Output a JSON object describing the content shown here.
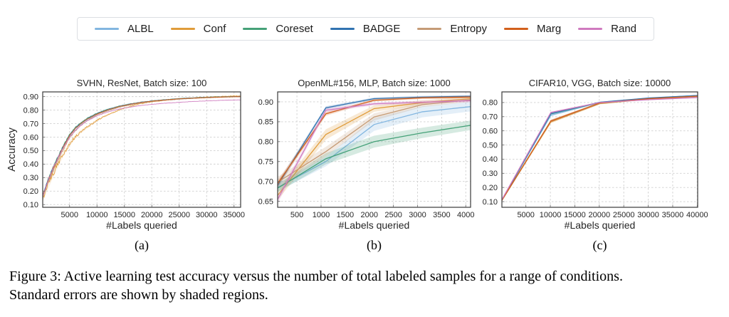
{
  "figure": {
    "caption_line1": "Figure 3: Active learning test accuracy versus the number of total labeled samples for a range of conditions.",
    "caption_line2": "Standard errors are shown by shaded regions."
  },
  "legend": {
    "entries": [
      {
        "label": "ALBL",
        "color": "#82B6E0"
      },
      {
        "label": "Conf",
        "color": "#E09C3A"
      },
      {
        "label": "Coreset",
        "color": "#45A178"
      },
      {
        "label": "BADGE",
        "color": "#3173B1"
      },
      {
        "label": "Entropy",
        "color": "#C59B76"
      },
      {
        "label": "Marg",
        "color": "#D2601C"
      },
      {
        "label": "Rand",
        "color": "#CF7ABF"
      }
    ]
  },
  "chart_data": [
    {
      "type": "line",
      "title": "SVHN, ResNet, Batch size: 100",
      "xlabel": "#Labels queried",
      "ylabel": "Accuracy",
      "sublabel": "(a)",
      "grid": true,
      "noisy": true,
      "xlim": [
        100,
        36200
      ],
      "ylim": [
        0.08,
        0.935
      ],
      "x_ticks": [
        5000,
        10000,
        15000,
        20000,
        25000,
        30000,
        35000
      ],
      "y_ticks": [
        0.1,
        0.2,
        0.3,
        0.4,
        0.5,
        0.6,
        0.7,
        0.8,
        0.9
      ],
      "x": [
        100,
        1000,
        2000,
        3000,
        4000,
        5000,
        6000,
        7000,
        8000,
        10000,
        12000,
        14000,
        16000,
        18000,
        20000,
        22000,
        25000,
        28000,
        31000,
        34000,
        36200
      ],
      "series": [
        {
          "name": "ALBL",
          "noise": 0.011,
          "values": [
            0.155,
            0.265,
            0.365,
            0.455,
            0.535,
            0.61,
            0.66,
            0.695,
            0.725,
            0.77,
            0.8,
            0.824,
            0.841,
            0.855,
            0.865,
            0.872,
            0.882,
            0.889,
            0.894,
            0.897,
            0.899
          ]
        },
        {
          "name": "Conf",
          "noise": 0.024,
          "values": [
            0.148,
            0.24,
            0.33,
            0.41,
            0.485,
            0.55,
            0.6,
            0.638,
            0.668,
            0.725,
            0.768,
            0.8,
            0.827,
            0.848,
            0.862,
            0.872,
            0.884,
            0.892,
            0.898,
            0.903,
            0.906
          ]
        },
        {
          "name": "Coreset",
          "noise": 0.011,
          "values": [
            0.165,
            0.275,
            0.375,
            0.465,
            0.545,
            0.62,
            0.67,
            0.705,
            0.735,
            0.778,
            0.807,
            0.83,
            0.846,
            0.859,
            0.868,
            0.876,
            0.886,
            0.892,
            0.897,
            0.9,
            0.902
          ]
        },
        {
          "name": "BADGE",
          "noise": 0.011,
          "values": [
            0.16,
            0.27,
            0.37,
            0.46,
            0.54,
            0.615,
            0.665,
            0.7,
            0.73,
            0.775,
            0.805,
            0.828,
            0.845,
            0.858,
            0.868,
            0.875,
            0.885,
            0.891,
            0.896,
            0.899,
            0.901
          ]
        },
        {
          "name": "Entropy",
          "noise": 0.013,
          "values": [
            0.15,
            0.255,
            0.35,
            0.44,
            0.52,
            0.595,
            0.645,
            0.685,
            0.715,
            0.765,
            0.795,
            0.82,
            0.838,
            0.852,
            0.863,
            0.871,
            0.881,
            0.888,
            0.893,
            0.897,
            0.899
          ]
        },
        {
          "name": "Marg",
          "noise": 0.011,
          "values": [
            0.158,
            0.268,
            0.368,
            0.458,
            0.538,
            0.612,
            0.662,
            0.698,
            0.728,
            0.772,
            0.802,
            0.826,
            0.843,
            0.857,
            0.867,
            0.874,
            0.884,
            0.89,
            0.895,
            0.898,
            0.9
          ]
        },
        {
          "name": "Rand",
          "noise": 0.008,
          "values": [
            0.16,
            0.27,
            0.37,
            0.455,
            0.53,
            0.6,
            0.648,
            0.685,
            0.715,
            0.758,
            0.787,
            0.808,
            0.822,
            0.834,
            0.843,
            0.85,
            0.858,
            0.865,
            0.87,
            0.874,
            0.876
          ]
        }
      ]
    },
    {
      "type": "line",
      "title": "OpenML#156, MLP, Batch size: 1000",
      "xlabel": "#Labels queried",
      "ylabel": "",
      "sublabel": "(b)",
      "grid": true,
      "noisy": false,
      "xlim": [
        100,
        4100
      ],
      "ylim": [
        0.635,
        0.925
      ],
      "x_ticks": [
        500,
        1000,
        1500,
        2000,
        2500,
        3000,
        3500,
        4000
      ],
      "y_ticks": [
        0.65,
        0.7,
        0.75,
        0.8,
        0.85,
        0.9
      ],
      "x": [
        100,
        1100,
        2100,
        3100,
        4100
      ],
      "series": [
        {
          "name": "ALBL",
          "values": [
            0.685,
            0.75,
            0.843,
            0.875,
            0.888
          ],
          "err": [
            0.01,
            0.012,
            0.016,
            0.014,
            0.012
          ]
        },
        {
          "name": "Conf",
          "values": [
            0.665,
            0.818,
            0.883,
            0.898,
            0.908
          ],
          "err": [
            0.012,
            0.013,
            0.008,
            0.006,
            0.005
          ]
        },
        {
          "name": "Coreset",
          "values": [
            0.683,
            0.757,
            0.8,
            0.822,
            0.841
          ],
          "err": [
            0.01,
            0.014,
            0.015,
            0.013,
            0.012
          ]
        },
        {
          "name": "BADGE",
          "values": [
            0.69,
            0.885,
            0.908,
            0.912,
            0.914
          ],
          "err": [
            0.008,
            0.004,
            0.003,
            0.003,
            0.003
          ]
        },
        {
          "name": "Entropy",
          "values": [
            0.698,
            0.775,
            0.862,
            0.893,
            0.905
          ],
          "err": [
            0.014,
            0.012,
            0.009,
            0.006,
            0.005
          ]
        },
        {
          "name": "Marg",
          "values": [
            0.695,
            0.87,
            0.904,
            0.91,
            0.912
          ],
          "err": [
            0.008,
            0.005,
            0.003,
            0.003,
            0.003
          ]
        },
        {
          "name": "Rand",
          "values": [
            0.655,
            0.879,
            0.895,
            0.899,
            0.903
          ],
          "err": [
            0.01,
            0.005,
            0.004,
            0.004,
            0.004
          ]
        }
      ]
    },
    {
      "type": "line",
      "title": "CIFAR10, VGG, Batch size: 10000",
      "xlabel": "#Labels queried",
      "ylabel": "",
      "sublabel": "(c)",
      "grid": true,
      "noisy": false,
      "xlim": [
        100,
        40100
      ],
      "ylim": [
        0.06,
        0.875
      ],
      "x_ticks": [
        5000,
        10000,
        15000,
        20000,
        25000,
        30000,
        35000,
        40000
      ],
      "y_ticks": [
        0.1,
        0.2,
        0.3,
        0.4,
        0.5,
        0.6,
        0.7,
        0.8
      ],
      "x": [
        100,
        10100,
        20100,
        30100,
        40100
      ],
      "series": [
        {
          "name": "ALBL",
          "values": [
            0.11,
            0.71,
            0.8,
            0.828,
            0.845
          ],
          "err": [
            0.004,
            0.008,
            0.004,
            0.003,
            0.003
          ]
        },
        {
          "name": "Conf",
          "values": [
            0.108,
            0.663,
            0.792,
            0.824,
            0.843
          ],
          "err": [
            0.004,
            0.01,
            0.005,
            0.003,
            0.003
          ]
        },
        {
          "name": "Coreset",
          "values": [
            0.112,
            0.72,
            0.801,
            0.83,
            0.849
          ],
          "err": [
            0.004,
            0.006,
            0.004,
            0.003,
            0.003
          ]
        },
        {
          "name": "BADGE",
          "values": [
            0.112,
            0.722,
            0.802,
            0.832,
            0.85
          ],
          "err": [
            0.004,
            0.006,
            0.003,
            0.003,
            0.003
          ]
        },
        {
          "name": "Entropy",
          "values": [
            0.108,
            0.668,
            0.794,
            0.825,
            0.843
          ],
          "err": [
            0.004,
            0.01,
            0.005,
            0.003,
            0.003
          ]
        },
        {
          "name": "Marg",
          "values": [
            0.11,
            0.67,
            0.797,
            0.827,
            0.845
          ],
          "err": [
            0.004,
            0.009,
            0.004,
            0.003,
            0.003
          ]
        },
        {
          "name": "Rand",
          "values": [
            0.115,
            0.73,
            0.8,
            0.82,
            0.835
          ],
          "err": [
            0.004,
            0.005,
            0.003,
            0.003,
            0.003
          ]
        }
      ]
    }
  ]
}
